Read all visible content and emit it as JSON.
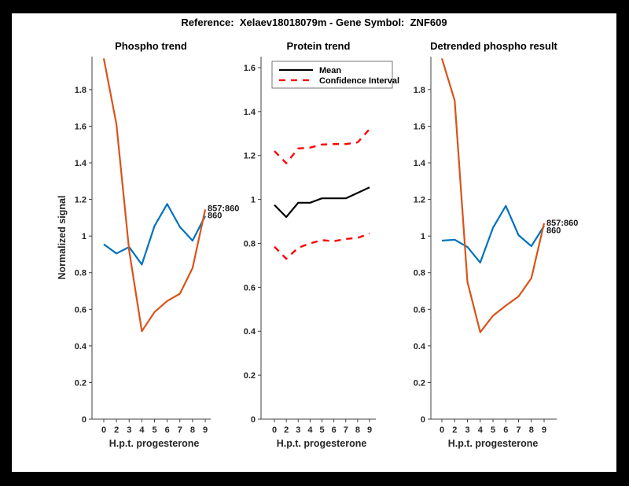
{
  "figure": {
    "title": "Reference:  Xelaev18018079m - Gene Symbol:  ZNF609",
    "frame_color": "#000000",
    "canvas_color": "#ffffff"
  },
  "colors": {
    "blue": "#0072BD",
    "orange": "#D95319",
    "red": "#FF0000",
    "black": "#000000"
  },
  "chart_data": [
    {
      "id": "phospho-trend",
      "type": "line",
      "title": "Phospho trend",
      "xlabel": "H.p.t. progesterone",
      "ylabel": "Normalized signal",
      "categories": [
        "0",
        "2",
        "3",
        "4",
        "5",
        "6",
        "7",
        "8",
        "9"
      ],
      "ylim": [
        0,
        1.98
      ],
      "grid": false,
      "yticks": [
        {
          "value": 0,
          "label": "0"
        },
        {
          "value": 0.2,
          "label": "0.2"
        },
        {
          "value": 0.4,
          "label": "0.4"
        },
        {
          "value": 0.6,
          "label": "0.6"
        },
        {
          "value": 0.8,
          "label": "0.8"
        },
        {
          "value": 1,
          "label": "1"
        },
        {
          "value": 1.2,
          "label": "1.2"
        },
        {
          "value": 1.4,
          "label": "1.4"
        },
        {
          "value": 1.6,
          "label": "1.6"
        },
        {
          "value": 1.8,
          "label": "1.8"
        }
      ],
      "series": [
        {
          "name": "860",
          "color": "blue",
          "style": "solid",
          "values": [
            0.955,
            0.905,
            0.94,
            0.845,
            1.055,
            1.175,
            1.05,
            0.975,
            1.11
          ]
        },
        {
          "name": "857:860",
          "color": "orange",
          "style": "solid",
          "values": [
            1.97,
            1.61,
            0.92,
            0.48,
            0.585,
            0.645,
            0.685,
            0.825,
            1.145
          ]
        }
      ],
      "annotations": [
        {
          "text": "857:860",
          "series": 1,
          "dy": -2
        },
        {
          "text": "860",
          "series": 0,
          "dy": -1
        }
      ]
    },
    {
      "id": "protein-trend",
      "type": "line",
      "title": "Protein trend",
      "xlabel": "H.p.t. progesterone",
      "ylabel": "",
      "categories": [
        "0",
        "2",
        "3",
        "4",
        "5",
        "6",
        "7",
        "8",
        "9"
      ],
      "ylim": [
        0,
        1.65
      ],
      "grid": false,
      "yticks": [
        {
          "value": 0,
          "label": "0"
        },
        {
          "value": 0.2,
          "label": "0.2"
        },
        {
          "value": 0.4,
          "label": "0.4"
        },
        {
          "value": 0.6,
          "label": "0.6"
        },
        {
          "value": 0.8,
          "label": "0.8"
        },
        {
          "value": 1,
          "label": "1"
        },
        {
          "value": 1.2,
          "label": "1.2"
        },
        {
          "value": 1.4,
          "label": "1.4"
        },
        {
          "value": 1.6,
          "label": "1.6"
        }
      ],
      "series": [
        {
          "name": "Mean",
          "color": "black",
          "style": "solid",
          "values": [
            0.975,
            0.92,
            0.985,
            0.985,
            1.005,
            1.005,
            1.005,
            1.03,
            1.055
          ]
        },
        {
          "name": "Confidence Interval upper",
          "color": "red",
          "style": "dashed",
          "values": [
            1.22,
            1.165,
            1.232,
            1.236,
            1.25,
            1.252,
            1.252,
            1.26,
            1.32
          ]
        },
        {
          "name": "Confidence Interval lower",
          "color": "red",
          "style": "dashed",
          "values": [
            0.785,
            0.73,
            0.78,
            0.8,
            0.815,
            0.81,
            0.82,
            0.825,
            0.845
          ]
        }
      ],
      "legend": {
        "position": "northwest",
        "entries": [
          {
            "label": "Mean",
            "color": "black",
            "style": "solid"
          },
          {
            "label": "Confidence Interval",
            "color": "red",
            "style": "dashed"
          }
        ]
      }
    },
    {
      "id": "detrended-phospho-result",
      "type": "line",
      "title": "Detrended phospho result",
      "xlabel": "H.p.t. progesterone",
      "ylabel": "",
      "categories": [
        "0",
        "2",
        "3",
        "4",
        "5",
        "6",
        "7",
        "8",
        "9"
      ],
      "ylim": [
        0,
        1.98
      ],
      "grid": false,
      "yticks": [
        {
          "value": 0,
          "label": "0"
        },
        {
          "value": 0.2,
          "label": "0.2"
        },
        {
          "value": 0.4,
          "label": "0.4"
        },
        {
          "value": 0.6,
          "label": "0.6"
        },
        {
          "value": 0.8,
          "label": "0.8"
        },
        {
          "value": 1,
          "label": "1"
        },
        {
          "value": 1.2,
          "label": "1.2"
        },
        {
          "value": 1.4,
          "label": "1.4"
        },
        {
          "value": 1.6,
          "label": "1.6"
        },
        {
          "value": 1.8,
          "label": "1.8"
        }
      ],
      "series": [
        {
          "name": "860",
          "color": "blue",
          "style": "solid",
          "values": [
            0.975,
            0.98,
            0.94,
            0.855,
            1.045,
            1.165,
            1.005,
            0.945,
            1.055
          ]
        },
        {
          "name": "857:860",
          "color": "orange",
          "style": "solid",
          "values": [
            1.97,
            1.74,
            0.75,
            0.475,
            0.565,
            0.62,
            0.67,
            0.77,
            1.07
          ]
        }
      ],
      "annotations": [
        {
          "text": "857:860",
          "series": 1,
          "dy": -1
        },
        {
          "text": "860",
          "series": 0,
          "dy": 5
        }
      ]
    }
  ]
}
